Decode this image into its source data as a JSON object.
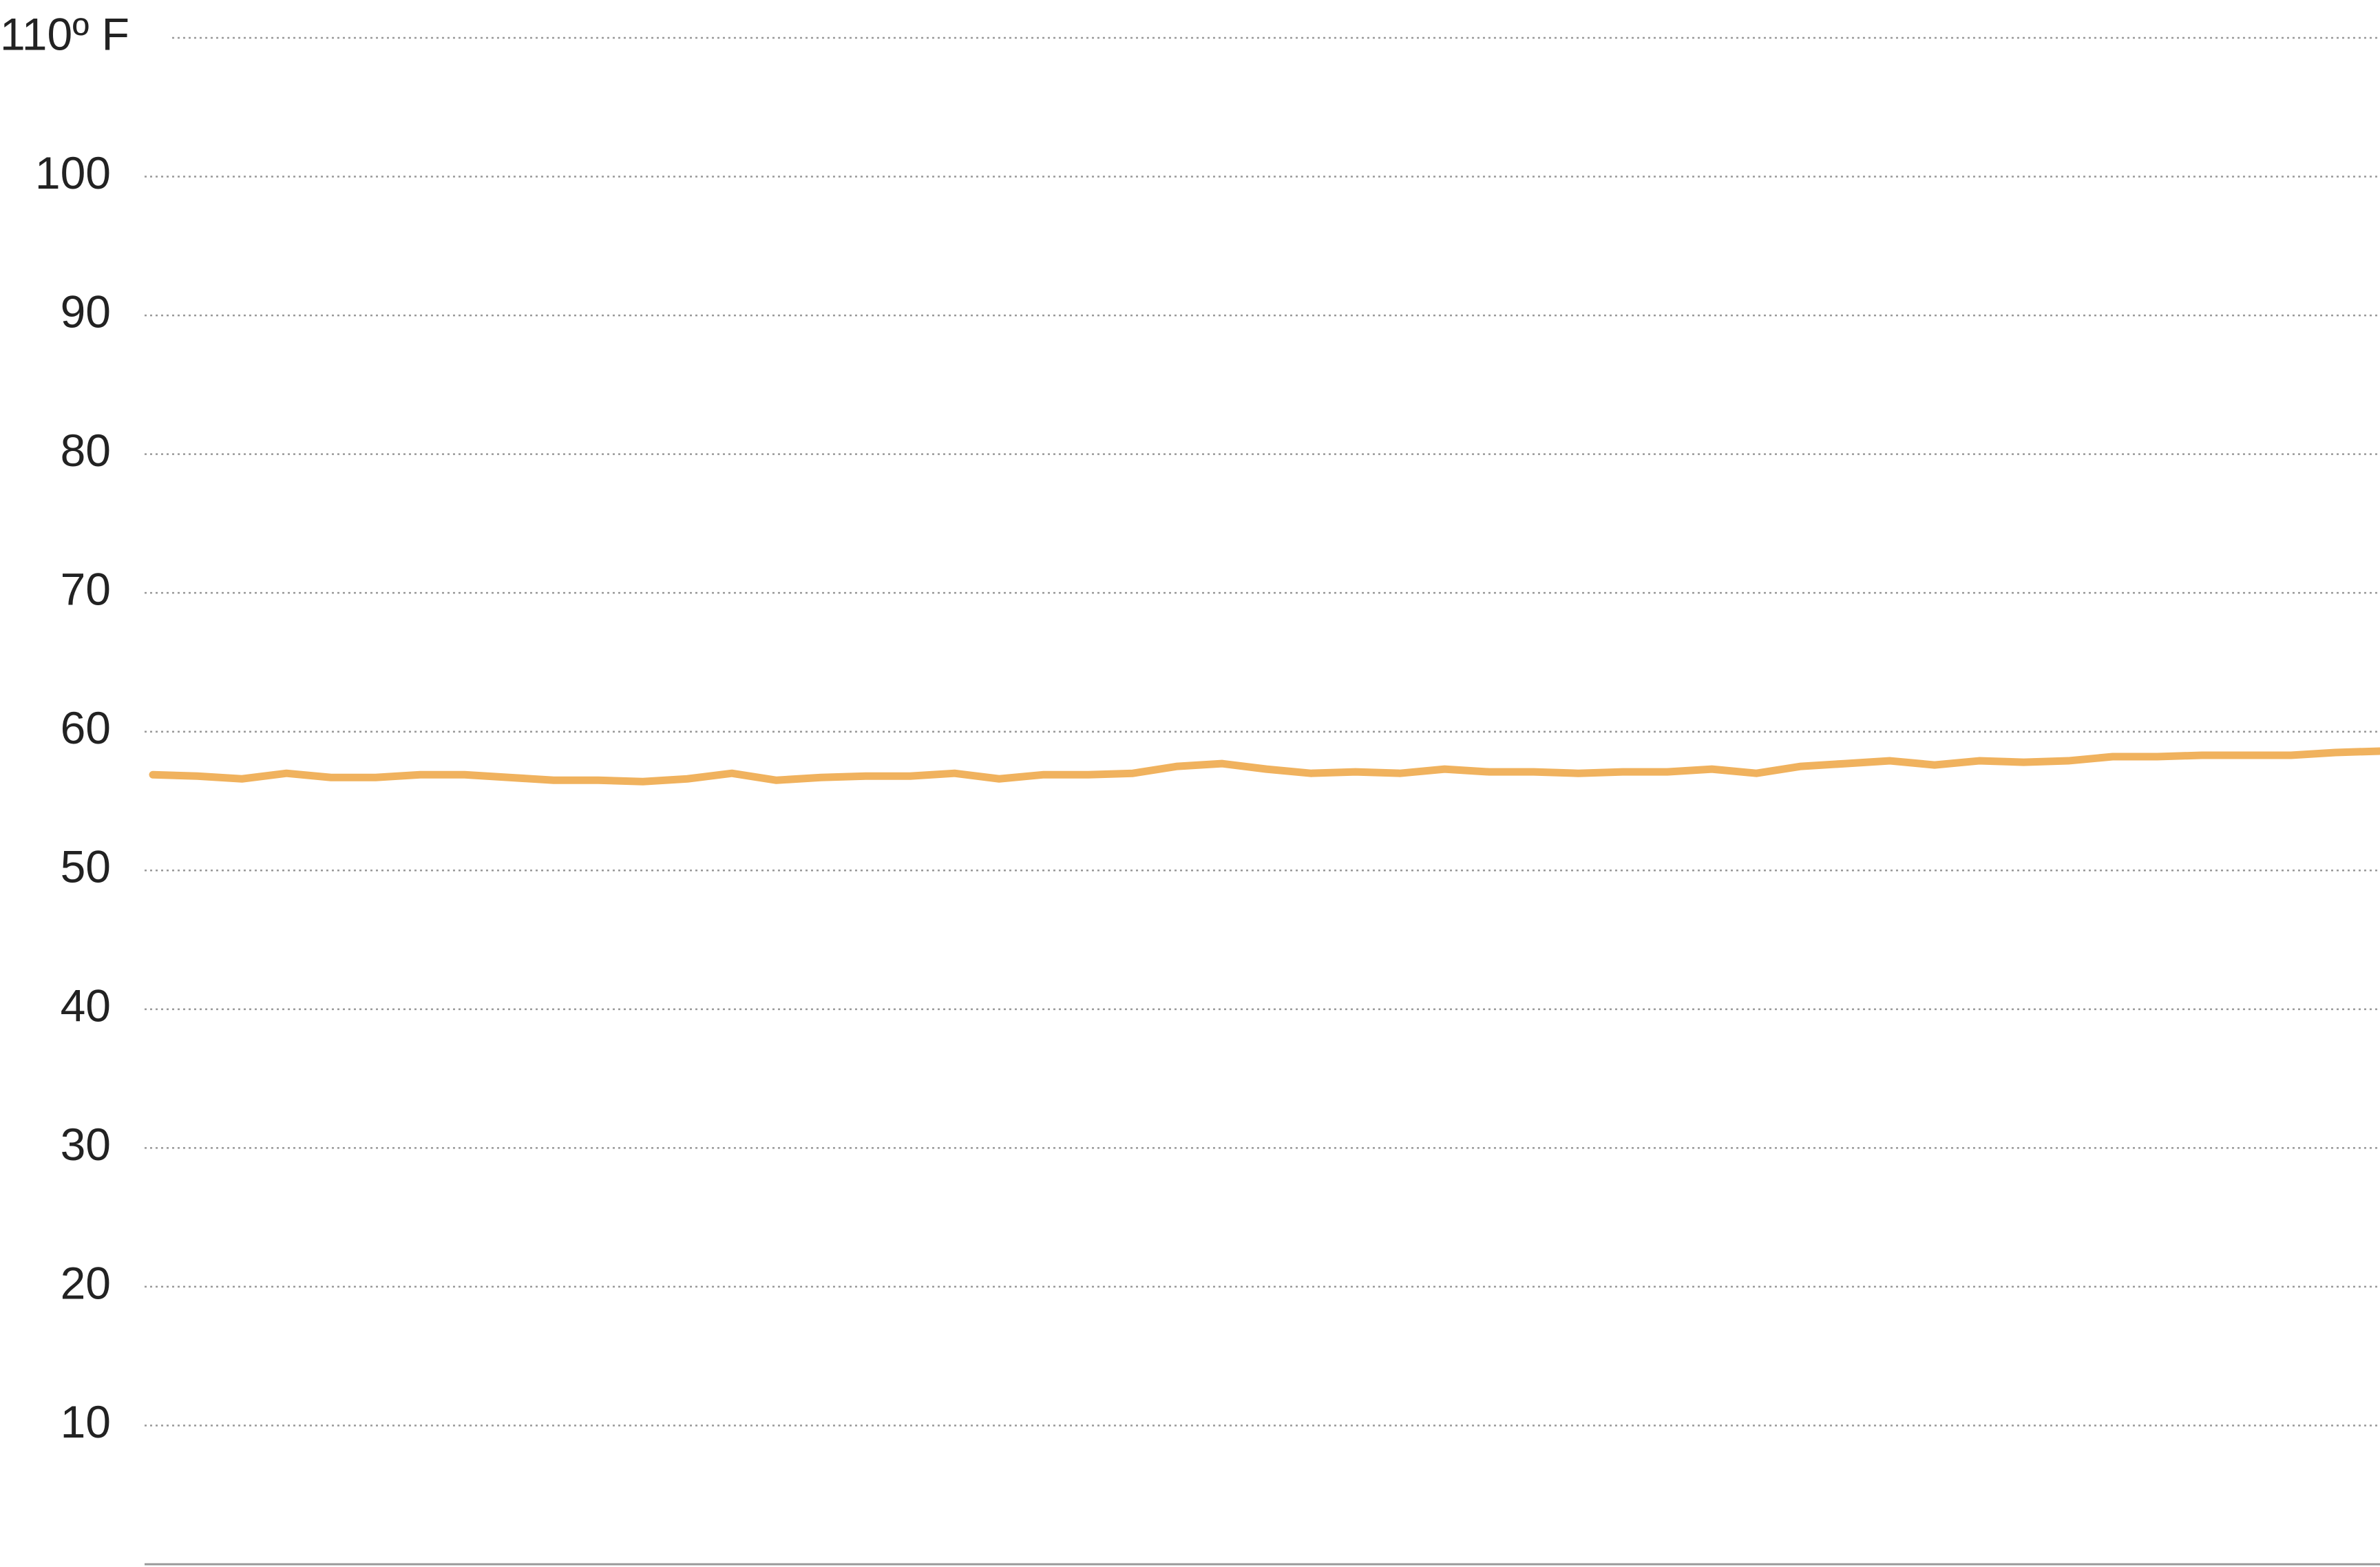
{
  "chart_data": {
    "type": "line",
    "categories": [
      null,
      null,
      null,
      null,
      null,
      null,
      null,
      null,
      null,
      null,
      null,
      null,
      null,
      null,
      null,
      null,
      null,
      null,
      null,
      null,
      null,
      null,
      null,
      null,
      null,
      null,
      null,
      null,
      null,
      null,
      null,
      null,
      null,
      null,
      null,
      null,
      null,
      null,
      null,
      null,
      null,
      null,
      null,
      null,
      null,
      null,
      null,
      null,
      null,
      null,
      null
    ],
    "series": [
      {
        "color": "#f0b25e",
        "values": [
          56.9,
          56.8,
          56.6,
          57.0,
          56.7,
          56.7,
          56.9,
          56.9,
          56.7,
          56.5,
          56.5,
          56.4,
          56.6,
          57.0,
          56.5,
          56.7,
          56.8,
          56.8,
          57.0,
          56.6,
          56.9,
          56.9,
          57.0,
          57.5,
          57.7,
          57.3,
          57.0,
          57.1,
          57.0,
          57.3,
          57.1,
          57.1,
          57.0,
          57.1,
          57.1,
          57.3,
          57.0,
          57.5,
          57.7,
          57.9,
          57.6,
          57.9,
          57.8,
          57.9,
          58.2,
          58.2,
          58.3,
          58.3,
          58.3,
          58.5,
          58.6
        ]
      }
    ],
    "ylim": [
      0,
      110
    ],
    "yticks": [
      10,
      20,
      30,
      40,
      50,
      60,
      70,
      80,
      90,
      100,
      {
        "value": 110,
        "label": "110º F"
      }
    ],
    "grid": true
  }
}
